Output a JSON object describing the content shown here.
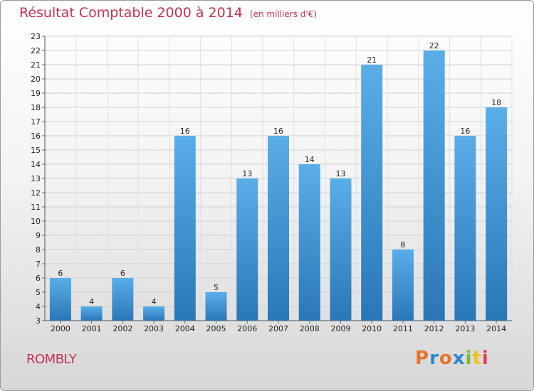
{
  "header": {
    "title": "Résultat Comptable 2000 à 2014",
    "unit": "(en milliers d'€)"
  },
  "footer": {
    "commune": "ROMBLY",
    "logo_text": "Proxiti",
    "logo_colors": [
      "#e8742a",
      "#2b8ad0",
      "#e8742a",
      "#2b8ad0",
      "#7bb83e",
      "#f0c419",
      "#e33b56"
    ]
  },
  "chart_data": {
    "type": "bar",
    "title": "Résultat Comptable 2000 à 2014",
    "ylabel": "(en milliers d'€)",
    "categories": [
      "2000",
      "2001",
      "2002",
      "2003",
      "2004",
      "2005",
      "2006",
      "2007",
      "2008",
      "2009",
      "2010",
      "2011",
      "2012",
      "2013",
      "2014"
    ],
    "values": [
      6,
      4,
      6,
      4,
      16,
      5,
      13,
      16,
      14,
      13,
      21,
      8,
      22,
      16,
      18
    ],
    "ylim": [
      3,
      23
    ],
    "yticks": [
      3,
      4,
      5,
      6,
      7,
      8,
      9,
      10,
      11,
      12,
      13,
      14,
      15,
      16,
      17,
      18,
      19,
      20,
      21,
      22,
      23
    ],
    "grid": true,
    "bar_color_top": "#5aaee8",
    "bar_color_bottom": "#2a77b8"
  }
}
